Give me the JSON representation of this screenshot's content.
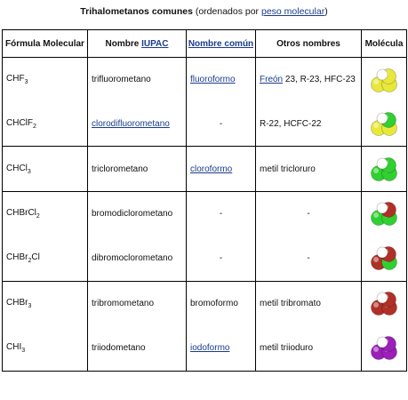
{
  "caption": {
    "bold": "Trihalometanos comunes",
    "rest_prefix": " (ordenados por ",
    "link": "peso molecular",
    "rest_suffix": ")"
  },
  "headers": {
    "formula": "Fórmula Molecular",
    "iupac_prefix": "Nombre ",
    "iupac_link": "IUPAC",
    "common": "Nombre común",
    "other": "Otros nombres",
    "molecule": "Molécula"
  },
  "groups": [
    {
      "rows": [
        {
          "formula_base": "CHF",
          "formula_sub": "3",
          "formula_tail": "",
          "iupac": "trifluorometano",
          "iupac_link": false,
          "common": "fluoroformo",
          "common_link": true,
          "other_link": "Freón",
          "other": " 23, R-23, HFC-23",
          "molecule": {
            "icon": "fluoroform-molecule-icon",
            "h": "#ffffff",
            "x1": "#e8e83a",
            "x2": "#e8e83a",
            "x3": "#e8e83a"
          }
        },
        {
          "formula_base": "CHClF",
          "formula_sub": "2",
          "formula_tail": "",
          "iupac": "clorodifluorometano",
          "iupac_link": true,
          "common": "-",
          "common_link": false,
          "other_link": "",
          "other": "R-22, HCFC-22",
          "molecule": {
            "icon": "chlorodifluoromethane-molecule-icon",
            "h": "#ffffff",
            "x1": "#2fd02f",
            "x2": "#e8e83a",
            "x3": "#e8e83a"
          }
        }
      ]
    },
    {
      "rows": [
        {
          "formula_base": "CHCl",
          "formula_sub": "3",
          "formula_tail": "",
          "iupac": "triclorometano",
          "iupac_link": false,
          "common": "cloroformo",
          "common_link": true,
          "other_link": "",
          "other": "metil tricloruro",
          "molecule": {
            "icon": "chloroform-molecule-icon",
            "h": "#ffffff",
            "x1": "#2fd02f",
            "x2": "#2fd02f",
            "x3": "#2fd02f"
          }
        }
      ]
    },
    {
      "rows": [
        {
          "formula_base": "CHBrCl",
          "formula_sub": "2",
          "formula_tail": "",
          "iupac": "bromodiclorometano",
          "iupac_link": false,
          "common": "-",
          "common_link": false,
          "other_link": "",
          "other": "-",
          "molecule": {
            "icon": "bromodichloromethane-molecule-icon",
            "h": "#ffffff",
            "x1": "#b03028",
            "x2": "#2fd02f",
            "x3": "#2fd02f"
          }
        },
        {
          "formula_base": "CHBr",
          "formula_sub": "2",
          "formula_tail": "Cl",
          "iupac": "dibromoclorometano",
          "iupac_link": false,
          "common": "-",
          "common_link": false,
          "other_link": "",
          "other": "-",
          "molecule": {
            "icon": "dibromochloromethane-molecule-icon",
            "h": "#ffffff",
            "x1": "#b03028",
            "x2": "#b03028",
            "x3": "#2fd02f"
          }
        }
      ]
    },
    {
      "rows": [
        {
          "formula_base": "CHBr",
          "formula_sub": "3",
          "formula_tail": "",
          "iupac": "tribromometano",
          "iupac_link": false,
          "common": "bromoformo",
          "common_link": false,
          "other_link": "",
          "other": "metil tribromato",
          "molecule": {
            "icon": "bromoform-molecule-icon",
            "h": "#ffffff",
            "x1": "#b03028",
            "x2": "#b03028",
            "x3": "#b03028"
          }
        },
        {
          "formula_base": "CHI",
          "formula_sub": "3",
          "formula_tail": "",
          "iupac": "triiodometano",
          "iupac_link": false,
          "common": "iodoformo",
          "common_link": true,
          "other_link": "",
          "other": "metil triioduro",
          "molecule": {
            "icon": "iodoform-molecule-icon",
            "h": "#ffffff",
            "x1": "#9b1fb8",
            "x2": "#9b1fb8",
            "x3": "#9b1fb8"
          }
        }
      ]
    }
  ]
}
